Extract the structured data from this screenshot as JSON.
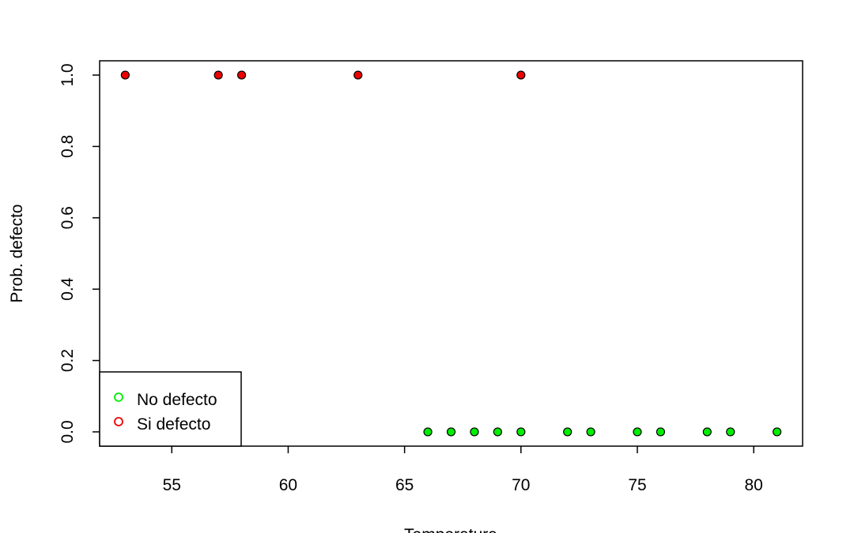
{
  "chart_data": {
    "type": "scatter",
    "xlabel": "Temperatura",
    "ylabel": "Prob. defecto",
    "xlim": [
      51.9,
      82.1
    ],
    "ylim": [
      -0.04,
      1.04
    ],
    "x_ticks": [
      55,
      60,
      65,
      70,
      75,
      80
    ],
    "x_tick_labels": [
      "55",
      "60",
      "65",
      "70",
      "75",
      "80"
    ],
    "y_ticks": [
      0,
      0.2,
      0.4,
      0.6,
      0.8,
      1
    ],
    "y_tick_labels": [
      "0.0",
      "0.2",
      "0.4",
      "0.6",
      "0.8",
      "1.0"
    ],
    "grid": false,
    "legend_position": "bottom-left",
    "series": [
      {
        "name": "No defecto",
        "color": "#00ee00",
        "marker": "filled-circle",
        "x": [
          66,
          67,
          68,
          69,
          70,
          72,
          73,
          75,
          76,
          78,
          79,
          81
        ],
        "y": [
          0,
          0,
          0,
          0,
          0,
          0,
          0,
          0,
          0,
          0,
          0,
          0
        ]
      },
      {
        "name": "Si defecto",
        "color": "#ee0000",
        "marker": "filled-circle",
        "x": [
          53,
          57,
          58,
          63,
          70
        ],
        "y": [
          1,
          1,
          1,
          1,
          1
        ]
      }
    ]
  }
}
